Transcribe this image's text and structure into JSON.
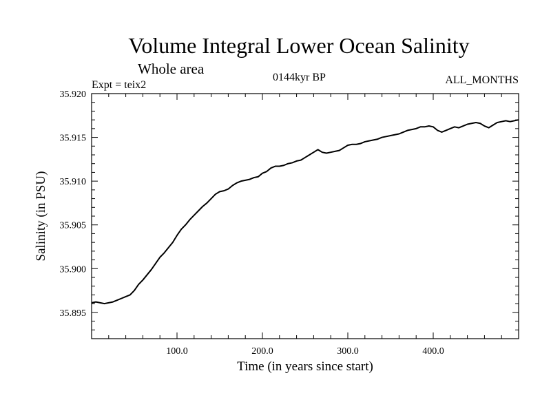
{
  "chart_data": {
    "type": "line",
    "title": "Volume Integral Lower Ocean Salinity",
    "subtitle": "Whole area",
    "experiment": "Expt = teix2",
    "period": "0144kyr BP",
    "months": "ALL_MONTHS",
    "xlabel": "Time (in years since start)",
    "ylabel": "Salinity (in PSU)",
    "xlim": [
      0,
      500
    ],
    "ylim": [
      35.892,
      35.92
    ],
    "xticks": [
      "100.0",
      "200.0",
      "300.0",
      "400.0"
    ],
    "yticks": [
      "35.895",
      "35.900",
      "35.905",
      "35.910",
      "35.915",
      "35.920"
    ],
    "grid": false,
    "series": [
      {
        "color": "#000000",
        "x": [
          0,
          5,
          10,
          15,
          20,
          25,
          30,
          35,
          40,
          45,
          50,
          55,
          60,
          65,
          70,
          75,
          80,
          85,
          90,
          95,
          100,
          105,
          110,
          115,
          120,
          125,
          130,
          135,
          140,
          145,
          150,
          155,
          160,
          165,
          170,
          175,
          180,
          185,
          190,
          195,
          200,
          205,
          210,
          215,
          220,
          225,
          230,
          235,
          240,
          245,
          250,
          255,
          260,
          265,
          270,
          275,
          280,
          285,
          290,
          295,
          300,
          305,
          310,
          315,
          320,
          325,
          330,
          335,
          340,
          345,
          350,
          355,
          360,
          365,
          370,
          375,
          380,
          385,
          390,
          395,
          400,
          405,
          410,
          415,
          420,
          425,
          430,
          435,
          440,
          445,
          450,
          455,
          460,
          465,
          470,
          475,
          480,
          485,
          490,
          495,
          500
        ],
        "values": [
          35.8961,
          35.8962,
          35.8961,
          35.896,
          35.8961,
          35.8962,
          35.8964,
          35.8966,
          35.8968,
          35.897,
          35.8975,
          35.8982,
          35.8987,
          35.8993,
          35.8999,
          35.9006,
          35.9013,
          35.9018,
          35.9024,
          35.903,
          35.9038,
          35.9045,
          35.905,
          35.9056,
          35.9061,
          35.9066,
          35.9071,
          35.9075,
          35.908,
          35.9085,
          35.9088,
          35.9089,
          35.9091,
          35.9095,
          35.9098,
          35.91,
          35.9101,
          35.9102,
          35.9104,
          35.9105,
          35.9109,
          35.9111,
          35.9115,
          35.9117,
          35.9117,
          35.9118,
          35.912,
          35.9121,
          35.9123,
          35.9124,
          35.9127,
          35.913,
          35.9133,
          35.9136,
          35.9133,
          35.9132,
          35.9133,
          35.9134,
          35.9135,
          35.9138,
          35.9141,
          35.9142,
          35.9142,
          35.9143,
          35.9145,
          35.9146,
          35.9147,
          35.9148,
          35.915,
          35.9151,
          35.9152,
          35.9153,
          35.9154,
          35.9156,
          35.9158,
          35.9159,
          35.916,
          35.9162,
          35.9162,
          35.9163,
          35.9162,
          35.9158,
          35.9156,
          35.9158,
          35.916,
          35.9162,
          35.9161,
          35.9163,
          35.9165,
          35.9166,
          35.9167,
          35.9166,
          35.9163,
          35.9161,
          35.9164,
          35.9167,
          35.9168,
          35.9169,
          35.9168,
          35.9169,
          35.917
        ]
      }
    ]
  }
}
